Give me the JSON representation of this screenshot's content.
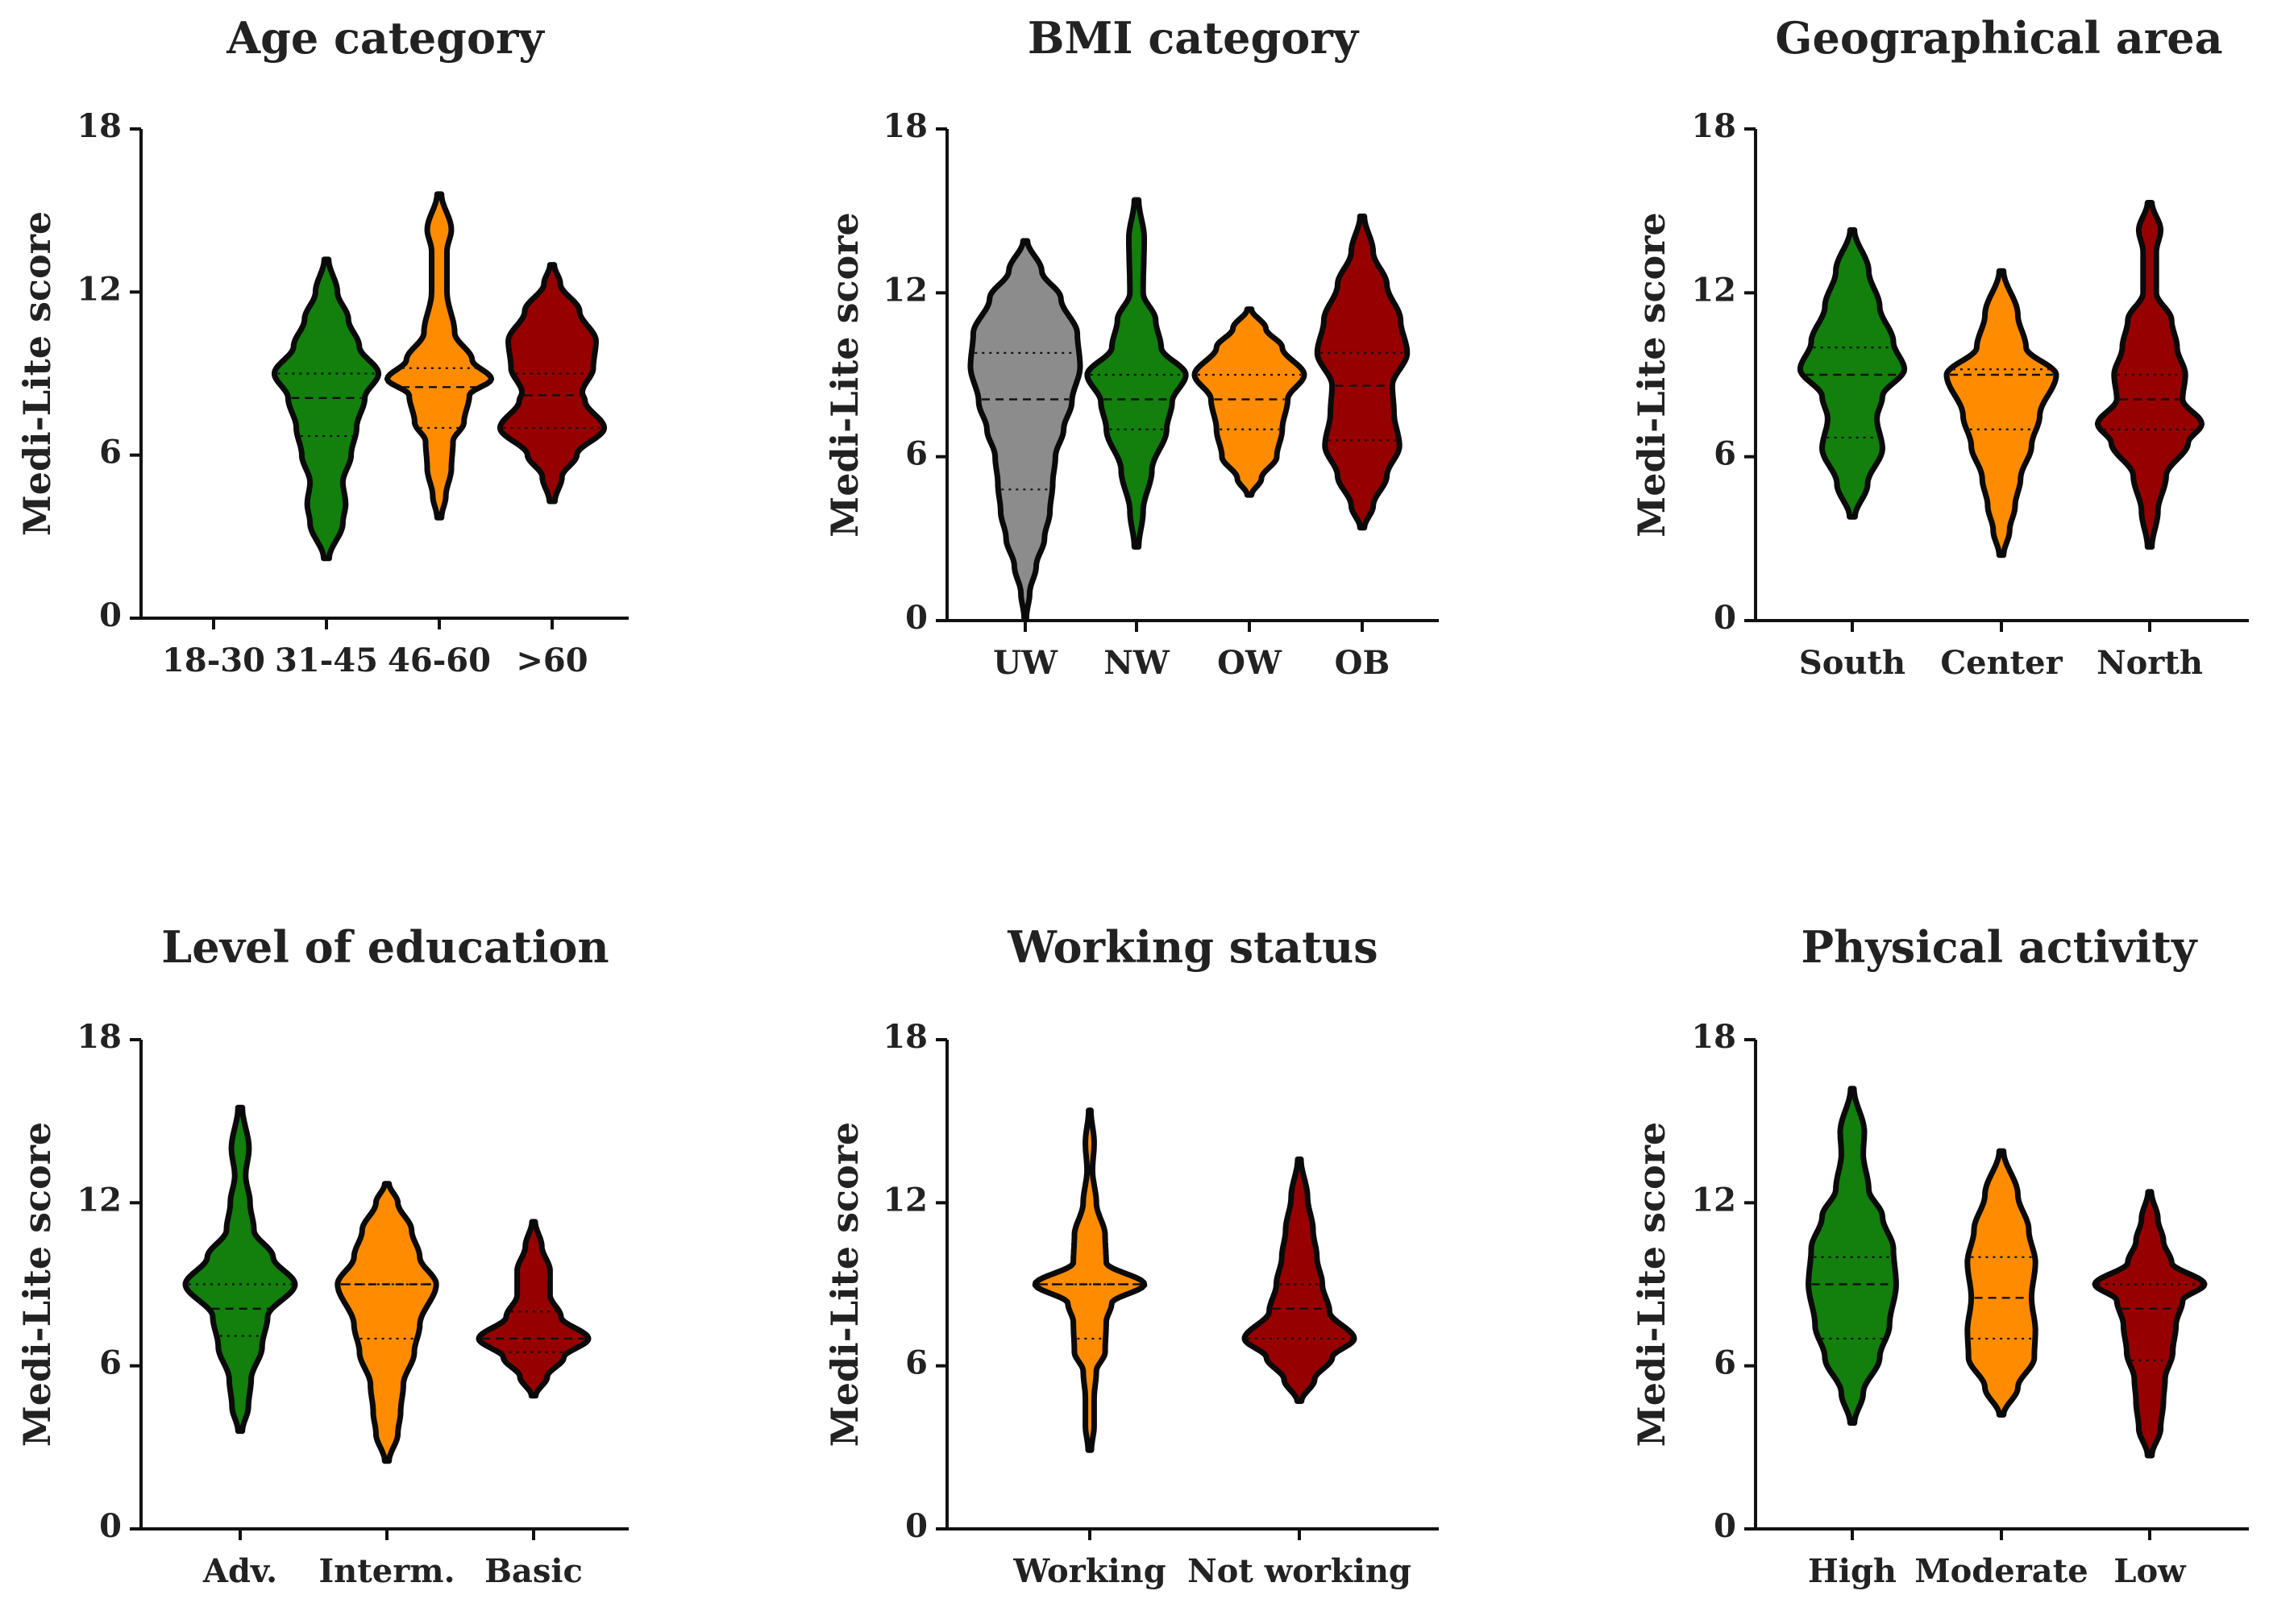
{
  "colors": {
    "green": "#137F0D",
    "orange": "#FF8C00",
    "red": "#960000",
    "gray": "#8C8C8C"
  },
  "chart_data": [
    {
      "type": "violin",
      "title": "Age category",
      "ylabel": "Medi-Lite score",
      "ylim": [
        0,
        18
      ],
      "yticks": [
        "0",
        "6",
        "12",
        "18"
      ],
      "categories": [
        "18-30",
        "31-45",
        "46-60",
        ">60"
      ],
      "series": [
        {
          "category": "18-30",
          "color": "",
          "min": null,
          "max": null,
          "q1": null,
          "median": null,
          "q3": null,
          "density": []
        },
        {
          "category": "31-45",
          "color": "#137F0D",
          "min": 2.2,
          "max": 13.2,
          "q1": 6.7,
          "median": 8.1,
          "q3": 9.0,
          "density": [
            [
              2.2,
              0.05
            ],
            [
              3.5,
              0.3
            ],
            [
              4.2,
              0.35
            ],
            [
              5,
              0.3
            ],
            [
              6,
              0.45
            ],
            [
              7,
              0.55
            ],
            [
              8.1,
              0.7
            ],
            [
              9,
              0.95
            ],
            [
              10,
              0.6
            ],
            [
              11,
              0.4
            ],
            [
              12,
              0.2
            ],
            [
              13.2,
              0.04
            ]
          ]
        },
        {
          "category": "46-60",
          "color": "#FF8C00",
          "min": 3.7,
          "max": 15.6,
          "q1": 7.0,
          "median": 8.5,
          "q3": 9.2,
          "density": [
            [
              3.7,
              0.04
            ],
            [
              4.5,
              0.12
            ],
            [
              5.5,
              0.22
            ],
            [
              6.5,
              0.25
            ],
            [
              7.2,
              0.45
            ],
            [
              8.2,
              0.55
            ],
            [
              8.8,
              0.95
            ],
            [
              9.5,
              0.6
            ],
            [
              10.5,
              0.28
            ],
            [
              12,
              0.14
            ],
            [
              13.5,
              0.14
            ],
            [
              14.3,
              0.22
            ],
            [
              15.6,
              0.04
            ]
          ]
        },
        {
          "category": ">60",
          "color": "#960000",
          "min": 4.3,
          "max": 13.0,
          "q1": 7.0,
          "median": 8.2,
          "q3": 9.0,
          "density": [
            [
              4.3,
              0.05
            ],
            [
              5.2,
              0.18
            ],
            [
              6,
              0.45
            ],
            [
              7,
              0.95
            ],
            [
              8,
              0.6
            ],
            [
              8.3,
              0.55
            ],
            [
              9.2,
              0.75
            ],
            [
              10.2,
              0.8
            ],
            [
              11.3,
              0.5
            ],
            [
              12.3,
              0.15
            ],
            [
              13,
              0.04
            ]
          ]
        }
      ]
    },
    {
      "type": "violin",
      "title": "BMI category",
      "ylabel": "Medi-Lite score",
      "ylim": [
        0,
        18
      ],
      "yticks": [
        "0",
        "6",
        "12",
        "18"
      ],
      "categories": [
        "UW",
        "NW",
        "OW",
        "OB"
      ],
      "series": [
        {
          "category": "UW",
          "color": "#8C8C8C",
          "min": 0.1,
          "max": 13.9,
          "q1": 4.8,
          "median": 8.1,
          "q3": 9.8,
          "density": [
            [
              0.1,
              0.02
            ],
            [
              1,
              0.08
            ],
            [
              2,
              0.2
            ],
            [
              3,
              0.35
            ],
            [
              4,
              0.45
            ],
            [
              5,
              0.5
            ],
            [
              6,
              0.55
            ],
            [
              7,
              0.7
            ],
            [
              8,
              0.85
            ],
            [
              9.3,
              1.0
            ],
            [
              10.5,
              0.95
            ],
            [
              11.8,
              0.65
            ],
            [
              12.8,
              0.3
            ],
            [
              13.9,
              0.04
            ]
          ]
        },
        {
          "category": "NW",
          "color": "#137F0D",
          "min": 2.7,
          "max": 15.4,
          "q1": 7.0,
          "median": 8.1,
          "q3": 9.0,
          "density": [
            [
              2.7,
              0.04
            ],
            [
              4,
              0.12
            ],
            [
              5.5,
              0.28
            ],
            [
              7,
              0.55
            ],
            [
              8,
              0.65
            ],
            [
              9,
              0.9
            ],
            [
              10,
              0.45
            ],
            [
              11,
              0.35
            ],
            [
              12,
              0.12
            ],
            [
              14,
              0.14
            ],
            [
              15.4,
              0.04
            ]
          ]
        },
        {
          "category": "OW",
          "color": "#FF8C00",
          "min": 4.6,
          "max": 11.4,
          "q1": 7.0,
          "median": 8.1,
          "q3": 9.0,
          "density": [
            [
              4.6,
              0.04
            ],
            [
              5.2,
              0.22
            ],
            [
              6,
              0.5
            ],
            [
              7,
              0.6
            ],
            [
              8.1,
              0.7
            ],
            [
              9,
              1.0
            ],
            [
              10,
              0.6
            ],
            [
              10.7,
              0.3
            ],
            [
              11.4,
              0.04
            ]
          ]
        },
        {
          "category": "OB",
          "color": "#960000",
          "min": 3.4,
          "max": 14.8,
          "q1": 6.6,
          "median": 8.6,
          "q3": 9.8,
          "density": [
            [
              3.4,
              0.04
            ],
            [
              4.2,
              0.2
            ],
            [
              5.3,
              0.45
            ],
            [
              6.4,
              0.68
            ],
            [
              7.6,
              0.58
            ],
            [
              8.6,
              0.55
            ],
            [
              9.8,
              0.82
            ],
            [
              11,
              0.7
            ],
            [
              12.3,
              0.45
            ],
            [
              13.5,
              0.2
            ],
            [
              14.8,
              0.04
            ]
          ]
        }
      ]
    },
    {
      "type": "violin",
      "title": "Geographical area",
      "ylabel": "Medi-Lite score",
      "ylim": [
        0,
        18
      ],
      "yticks": [
        "0",
        "6",
        "12",
        "18"
      ],
      "categories": [
        "South",
        "Center",
        "North"
      ],
      "series": [
        {
          "category": "South",
          "color": "#137F0D",
          "min": 3.8,
          "max": 14.3,
          "q1": 6.7,
          "median": 9.0,
          "q3": 10.0,
          "density": [
            [
              3.8,
              0.05
            ],
            [
              5,
              0.28
            ],
            [
              6.3,
              0.55
            ],
            [
              7.4,
              0.45
            ],
            [
              8.2,
              0.55
            ],
            [
              9.2,
              0.95
            ],
            [
              10.2,
              0.75
            ],
            [
              11.5,
              0.5
            ],
            [
              12.8,
              0.3
            ],
            [
              14.3,
              0.04
            ]
          ]
        },
        {
          "category": "Center",
          "color": "#FF8C00",
          "min": 2.4,
          "max": 12.8,
          "q1": 7.0,
          "median": 9.0,
          "q3": 9.2,
          "density": [
            [
              2.4,
              0.04
            ],
            [
              3.3,
              0.15
            ],
            [
              4.2,
              0.25
            ],
            [
              5.2,
              0.35
            ],
            [
              6.4,
              0.55
            ],
            [
              7.5,
              0.7
            ],
            [
              9,
              1.0
            ],
            [
              10,
              0.45
            ],
            [
              11.2,
              0.3
            ],
            [
              12.8,
              0.04
            ]
          ]
        },
        {
          "category": "North",
          "color": "#960000",
          "min": 2.7,
          "max": 15.3,
          "q1": 7.0,
          "median": 8.1,
          "q3": 9.0,
          "density": [
            [
              2.7,
              0.04
            ],
            [
              4,
              0.15
            ],
            [
              5.3,
              0.3
            ],
            [
              6.5,
              0.7
            ],
            [
              7.2,
              0.95
            ],
            [
              8.1,
              0.6
            ],
            [
              9,
              0.65
            ],
            [
              10,
              0.5
            ],
            [
              11,
              0.4
            ],
            [
              12,
              0.12
            ],
            [
              13.5,
              0.12
            ],
            [
              14.3,
              0.2
            ],
            [
              15.3,
              0.04
            ]
          ]
        }
      ]
    },
    {
      "type": "violin",
      "title": "Level of education",
      "ylabel": "Medi-Lite score",
      "ylim": [
        0,
        18
      ],
      "yticks": [
        "0",
        "6",
        "12",
        "18"
      ],
      "categories": [
        "Adv.",
        "Interm.",
        "Basic"
      ],
      "series": [
        {
          "category": "Adv.",
          "color": "#137F0D",
          "min": 3.6,
          "max": 15.5,
          "q1": 7.1,
          "median": 8.1,
          "q3": 9.0,
          "density": [
            [
              3.6,
              0.04
            ],
            [
              4.5,
              0.15
            ],
            [
              5.5,
              0.2
            ],
            [
              6.7,
              0.4
            ],
            [
              7.8,
              0.5
            ],
            [
              9,
              1.0
            ],
            [
              10,
              0.6
            ],
            [
              11,
              0.25
            ],
            [
              12,
              0.18
            ],
            [
              13,
              0.1
            ],
            [
              14,
              0.16
            ],
            [
              15.5,
              0.04
            ]
          ]
        },
        {
          "category": "Interm.",
          "color": "#FF8C00",
          "min": 2.5,
          "max": 12.7,
          "q1": 7.0,
          "median": 9.0,
          "q3": 9.0,
          "density": [
            [
              2.5,
              0.04
            ],
            [
              3.5,
              0.2
            ],
            [
              4.3,
              0.25
            ],
            [
              5.3,
              0.3
            ],
            [
              6.5,
              0.5
            ],
            [
              7.5,
              0.6
            ],
            [
              9,
              0.9
            ],
            [
              10,
              0.6
            ],
            [
              11,
              0.45
            ],
            [
              12,
              0.2
            ],
            [
              12.7,
              0.04
            ]
          ]
        },
        {
          "category": "Basic",
          "color": "#960000",
          "min": 4.9,
          "max": 11.3,
          "q1": 6.5,
          "median": 7.0,
          "q3": 8.0,
          "density": [
            [
              4.9,
              0.04
            ],
            [
              5.6,
              0.25
            ],
            [
              6.3,
              0.55
            ],
            [
              7,
              1.0
            ],
            [
              7.8,
              0.5
            ],
            [
              8.6,
              0.3
            ],
            [
              9.5,
              0.3
            ],
            [
              10.4,
              0.15
            ],
            [
              11.3,
              0.03
            ]
          ]
        }
      ]
    },
    {
      "type": "violin",
      "title": "Working status",
      "ylabel": "Medi-Lite score",
      "ylim": [
        0,
        18
      ],
      "yticks": [
        "0",
        "6",
        "12",
        "18"
      ],
      "categories": [
        "Working",
        "Not working"
      ],
      "series": [
        {
          "category": "Working",
          "color": "#FF8C00",
          "min": 2.9,
          "max": 15.4,
          "q1": 7.0,
          "median": 9.0,
          "q3": 9.0,
          "density": [
            [
              2.9,
              0.03
            ],
            [
              3.8,
              0.08
            ],
            [
              4.8,
              0.08
            ],
            [
              5.8,
              0.12
            ],
            [
              6.5,
              0.28
            ],
            [
              7.6,
              0.3
            ],
            [
              8.3,
              0.4
            ],
            [
              9,
              1.0
            ],
            [
              9.8,
              0.3
            ],
            [
              10.8,
              0.28
            ],
            [
              12,
              0.12
            ],
            [
              13.2,
              0.05
            ],
            [
              14.2,
              0.08
            ],
            [
              15.4,
              0.02
            ]
          ]
        },
        {
          "category": "Not working",
          "color": "#960000",
          "min": 4.7,
          "max": 13.6,
          "q1": 7.0,
          "median": 8.1,
          "q3": 9.0,
          "density": [
            [
              4.7,
              0.04
            ],
            [
              5.5,
              0.28
            ],
            [
              6.3,
              0.6
            ],
            [
              7,
              1.0
            ],
            [
              8,
              0.55
            ],
            [
              9,
              0.42
            ],
            [
              10,
              0.32
            ],
            [
              11,
              0.25
            ],
            [
              12.2,
              0.15
            ],
            [
              13.6,
              0.03
            ]
          ]
        }
      ]
    },
    {
      "type": "violin",
      "title": "Physical activity",
      "ylabel": "Medi-Lite score",
      "ylim": [
        0,
        18
      ],
      "yticks": [
        "0",
        "6",
        "12",
        "18"
      ],
      "categories": [
        "High",
        "Moderate",
        "Low"
      ],
      "series": [
        {
          "category": "High",
          "color": "#137F0D",
          "min": 3.9,
          "max": 16.2,
          "q1": 7.0,
          "median": 9.0,
          "q3": 10.0,
          "density": [
            [
              3.9,
              0.04
            ],
            [
              5,
              0.2
            ],
            [
              6.3,
              0.5
            ],
            [
              7.5,
              0.68
            ],
            [
              9,
              0.8
            ],
            [
              10.3,
              0.75
            ],
            [
              11.5,
              0.55
            ],
            [
              12.5,
              0.3
            ],
            [
              13.8,
              0.2
            ],
            [
              14.6,
              0.22
            ],
            [
              16.2,
              0.03
            ]
          ]
        },
        {
          "category": "Moderate",
          "color": "#FF8C00",
          "min": 4.2,
          "max": 13.9,
          "q1": 7.0,
          "median": 8.5,
          "q3": 10.0,
          "density": [
            [
              4.2,
              0.04
            ],
            [
              5.2,
              0.3
            ],
            [
              6.3,
              0.6
            ],
            [
              7.3,
              0.62
            ],
            [
              8.5,
              0.55
            ],
            [
              9.8,
              0.62
            ],
            [
              11,
              0.5
            ],
            [
              12.3,
              0.3
            ],
            [
              13.9,
              0.04
            ]
          ]
        },
        {
          "category": "Low",
          "color": "#960000",
          "min": 2.7,
          "max": 12.4,
          "q1": 6.2,
          "median": 8.1,
          "q3": 9.0,
          "density": [
            [
              2.7,
              0.04
            ],
            [
              3.7,
              0.2
            ],
            [
              4.7,
              0.25
            ],
            [
              5.5,
              0.28
            ],
            [
              6.5,
              0.42
            ],
            [
              7.5,
              0.48
            ],
            [
              8.4,
              0.6
            ],
            [
              9,
              1.0
            ],
            [
              9.8,
              0.4
            ],
            [
              10.6,
              0.25
            ],
            [
              11.4,
              0.15
            ],
            [
              12.4,
              0.03
            ]
          ]
        }
      ]
    }
  ]
}
